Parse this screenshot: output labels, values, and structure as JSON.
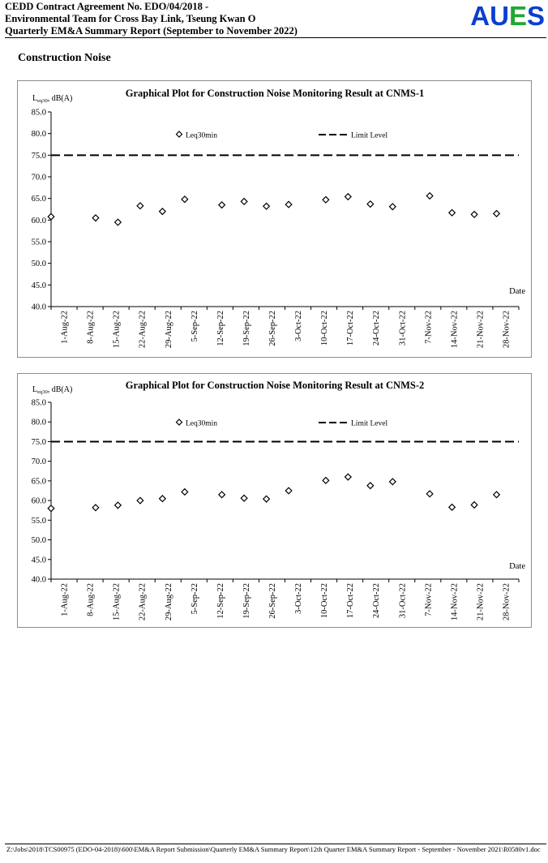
{
  "header": {
    "line1": "CEDD Contract Agreement No. EDO/04/2018 -",
    "line2": "Environmental Team for Cross Bay Link, Tseung Kwan O",
    "line3": "Quarterly EM&A Summary Report (September to November 2022)",
    "logo_letters": [
      "A",
      "U",
      "E",
      "S"
    ],
    "logo_colors": [
      "#0a3fd1",
      "#0a3fd1",
      "#1fa832",
      "#0a3fd1"
    ]
  },
  "section_title": "Construction Noise",
  "footer": "Z:\\Jobs\\2018\\TCS00975 (EDO-04-2018)\\600\\EM&A Report Submission\\Quarterly EM&A Summary Report\\12th Quarter EM&A Summary Report - September - November 2021\\R0580v1.doc",
  "chart_data": [
    {
      "type": "scatter",
      "title": "Graphical Plot for Construction Noise Monitoring Result at CNMS-1",
      "ylabel_main": "L",
      "ylabel_sub": "eq30",
      "ylabel_rest": ", dB(A)",
      "xlabel": "Date",
      "ylim": [
        40,
        85
      ],
      "yticks": [
        "40.0",
        "45.0",
        "50.0",
        "55.0",
        "60.0",
        "65.0",
        "70.0",
        "75.0",
        "80.0",
        "85.0"
      ],
      "x_ticks": [
        "1-Aug-22",
        "8-Aug-22",
        "15-Aug-22",
        "22-Aug-22",
        "29-Aug-22",
        "5-Sep-22",
        "12-Sep-22",
        "19-Sep-22",
        "26-Sep-22",
        "3-Oct-22",
        "10-Oct-22",
        "17-Oct-22",
        "24-Oct-22",
        "31-Oct-22",
        "7-Nov-22",
        "14-Nov-22",
        "21-Nov-22",
        "28-Nov-22"
      ],
      "x_range": [
        "2022-08-01",
        "2022-12-01"
      ],
      "legend": {
        "series": "Leq30min",
        "limit": "Limit Level",
        "placement": "top"
      },
      "limit": 75.0,
      "series": [
        {
          "name": "Leq30min",
          "points": [
            {
              "x": "2022-08-01",
              "y": 60.8
            },
            {
              "x": "2022-08-13",
              "y": 60.5
            },
            {
              "x": "2022-08-19",
              "y": 59.5
            },
            {
              "x": "2022-08-25",
              "y": 63.3
            },
            {
              "x": "2022-08-31",
              "y": 62.0
            },
            {
              "x": "2022-09-06",
              "y": 64.8
            },
            {
              "x": "2022-09-16",
              "y": 63.5
            },
            {
              "x": "2022-09-22",
              "y": 64.3
            },
            {
              "x": "2022-09-28",
              "y": 63.2
            },
            {
              "x": "2022-10-04",
              "y": 63.6
            },
            {
              "x": "2022-10-14",
              "y": 64.7
            },
            {
              "x": "2022-10-20",
              "y": 65.4
            },
            {
              "x": "2022-10-26",
              "y": 63.7
            },
            {
              "x": "2022-11-01",
              "y": 63.1
            },
            {
              "x": "2022-11-11",
              "y": 65.6
            },
            {
              "x": "2022-11-17",
              "y": 61.7
            },
            {
              "x": "2022-11-23",
              "y": 61.3
            },
            {
              "x": "2022-11-29",
              "y": 61.5
            }
          ]
        }
      ]
    },
    {
      "type": "scatter",
      "title": "Graphical Plot for Construction Noise Monitoring Result at CNMS-2",
      "ylabel_main": "L",
      "ylabel_sub": "eq30",
      "ylabel_rest": ", dB(A)",
      "xlabel": "Date",
      "ylim": [
        40,
        85
      ],
      "yticks": [
        "40.0",
        "45.0",
        "50.0",
        "55.0",
        "60.0",
        "65.0",
        "70.0",
        "75.0",
        "80.0",
        "85.0"
      ],
      "x_ticks": [
        "1-Aug-22",
        "8-Aug-22",
        "15-Aug-22",
        "22-Aug-22",
        "29-Aug-22",
        "5-Sep-22",
        "12-Sep-22",
        "19-Sep-22",
        "26-Sep-22",
        "3-Oct-22",
        "10-Oct-22",
        "17-Oct-22",
        "24-Oct-22",
        "31-Oct-22",
        "7-Nov-22",
        "14-Nov-22",
        "21-Nov-22",
        "28-Nov-22"
      ],
      "x_range": [
        "2022-08-01",
        "2022-12-01"
      ],
      "legend": {
        "series": "Leq30min",
        "limit": "Limit Level",
        "placement": "top"
      },
      "limit": 75.0,
      "series": [
        {
          "name": "Leq30min",
          "points": [
            {
              "x": "2022-08-01",
              "y": 58.0
            },
            {
              "x": "2022-08-13",
              "y": 58.2
            },
            {
              "x": "2022-08-19",
              "y": 58.8
            },
            {
              "x": "2022-08-25",
              "y": 60.0
            },
            {
              "x": "2022-08-31",
              "y": 60.5
            },
            {
              "x": "2022-09-06",
              "y": 62.2
            },
            {
              "x": "2022-09-16",
              "y": 61.5
            },
            {
              "x": "2022-09-22",
              "y": 60.6
            },
            {
              "x": "2022-09-28",
              "y": 60.4
            },
            {
              "x": "2022-10-04",
              "y": 62.5
            },
            {
              "x": "2022-10-14",
              "y": 65.1
            },
            {
              "x": "2022-10-20",
              "y": 66.0
            },
            {
              "x": "2022-10-26",
              "y": 63.8
            },
            {
              "x": "2022-11-01",
              "y": 64.8
            },
            {
              "x": "2022-11-11",
              "y": 61.7
            },
            {
              "x": "2022-11-17",
              "y": 58.3
            },
            {
              "x": "2022-11-23",
              "y": 58.9
            },
            {
              "x": "2022-11-29",
              "y": 61.5
            }
          ]
        }
      ]
    }
  ]
}
